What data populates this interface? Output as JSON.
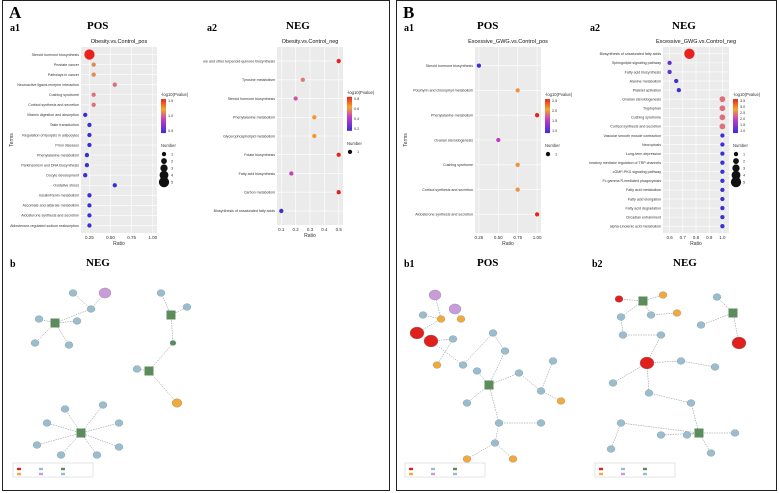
{
  "panels": {
    "A": {
      "letter": "A",
      "a1": "a1",
      "a2": "a2",
      "b": "b",
      "pos_title": "POS",
      "neg_title": "NEG",
      "net_title": "NEG"
    },
    "B": {
      "letter": "B",
      "a1": "a1",
      "a2": "a2",
      "b1": "b1",
      "b2": "b2",
      "pos_title": "POS",
      "neg_title": "NEG",
      "net1_title": "POS",
      "net2_title": "NEG"
    }
  },
  "colors": {
    "dot_low": "#3b2fd6",
    "dot_mid": "#f4a62a",
    "dot_high": "#e8231f",
    "node_blue": "#9bbccd",
    "node_purple": "#c99bd9",
    "node_orange": "#f2a93b",
    "node_red": "#e0201c",
    "node_green": "#5c8c5c"
  },
  "chart_data": [
    {
      "id": "A_a1",
      "type": "scatter",
      "title": "Obesity.vs.Control_pos",
      "xlabel": "Ratio",
      "ylabel": "Terms",
      "xticks": [
        "0.25",
        "0.50",
        "0.75",
        "1.00"
      ],
      "xlim": [
        0.15,
        1.05
      ],
      "legend_color_title": "-log10(Pvalue)",
      "legend_color_ticks": [
        "1.5",
        "1.0",
        "0.5"
      ],
      "legend_size_title": "Number",
      "legend_size_ticks": [
        "1",
        "2",
        "3",
        "4",
        "5"
      ],
      "terms": [
        "Steroid hormone biosynthesis",
        "Prostate cancer",
        "Pathways in cancer",
        "Neuroactive ligand-receptor interaction",
        "Cushing syndrome",
        "Cortisol synthesis and secretion",
        "Vitamin digestion and absorption",
        "Taste transduction",
        "Regulation of lipolysis in adipocytes",
        "Prion diseases",
        "Phenylalanine metabolism",
        "Parkinsonism and DNA biosynthesis",
        "Oocyte development",
        "Oxidative stress",
        "Insulin/Renin metabolism",
        "Ascorbate and aldarate metabolism",
        "Aldosterone synthesis and secretion",
        "Aldosterone-regulated sodium reabsorption"
      ],
      "x": [
        0.25,
        0.3,
        0.3,
        0.55,
        0.3,
        0.3,
        0.2,
        0.25,
        0.25,
        0.25,
        0.22,
        0.22,
        0.2,
        0.55,
        0.25,
        0.25,
        0.25,
        0.25
      ],
      "neglogp": [
        1.9,
        1.2,
        1.2,
        1.1,
        1.1,
        1.1,
        0.3,
        0.3,
        0.3,
        0.3,
        0.3,
        0.3,
        0.3,
        0.3,
        0.3,
        0.3,
        0.3,
        0.3
      ],
      "number": [
        5,
        1,
        1,
        1,
        1,
        1,
        1,
        1,
        1,
        1,
        1,
        1,
        1,
        1,
        1,
        1,
        1,
        1
      ]
    },
    {
      "id": "A_a2",
      "type": "scatter",
      "title": "Obesity.vs.Control_neg",
      "xlabel": "Ratio",
      "ylabel": "",
      "xticks": [
        "0.1",
        "0.2",
        "0.3",
        "0.4",
        "0.5"
      ],
      "xlim": [
        0.07,
        0.53
      ],
      "legend_color_title": "-log10(Pvalue)",
      "legend_color_ticks": [
        "0.8",
        "0.6",
        "0.4",
        "0.2"
      ],
      "legend_size_title": "Number",
      "legend_size_ticks": [
        "1"
      ],
      "terms": [
        "Ubiquinone and other terpenoid-quinone biosynthesis",
        "Tyrosine metabolism",
        "Steroid hormone biosynthesis",
        "Phenylalanine metabolism",
        "Glycerophospholipid metabolism",
        "Folate biosynthesis",
        "Fatty acid biosynthesis",
        "Carbon metabolism",
        "Biosynthesis of unsaturated fatty acids"
      ],
      "x": [
        0.5,
        0.25,
        0.2,
        0.33,
        0.33,
        0.5,
        0.17,
        0.5,
        0.1
      ],
      "neglogp": [
        0.95,
        0.55,
        0.45,
        0.7,
        0.7,
        0.95,
        0.4,
        0.95,
        0.1
      ],
      "number": [
        1,
        1,
        1,
        1,
        1,
        1,
        1,
        1,
        1
      ]
    },
    {
      "id": "B_a1",
      "type": "scatter",
      "title": "Excessive_GWG.vs.Control_pos",
      "xlabel": "Ratio",
      "ylabel": "Terms",
      "xticks": [
        "0.25",
        "0.50",
        "0.75",
        "1.00"
      ],
      "xlim": [
        0.2,
        1.05
      ],
      "legend_color_title": "-log10(Pvalue)",
      "legend_color_ticks": [
        "2.5",
        "2.0",
        "1.5",
        "1.0"
      ],
      "legend_size_title": "Number",
      "legend_size_ticks": [
        "1"
      ],
      "terms": [
        "Steroid hormone biosynthesis",
        "Porphyrin and chlorophyll metabolism",
        "Phenylalanine metabolism",
        "Ovarian steroidogenesis",
        "Cushing syndrome",
        "Cortisol synthesis and secretion",
        "Aldosterone synthesis and secretion"
      ],
      "x": [
        0.25,
        0.75,
        1.0,
        0.5,
        0.75,
        0.75,
        1.0
      ],
      "neglogp": [
        0.9,
        2.0,
        2.7,
        1.5,
        2.0,
        2.0,
        2.7
      ],
      "number": [
        1,
        1,
        1,
        1,
        1,
        1,
        1
      ]
    },
    {
      "id": "B_a2",
      "type": "scatter",
      "title": "Excessive_GWG.vs.Control_neg",
      "xlabel": "Ratio",
      "ylabel": "",
      "xticks": [
        "0.6",
        "0.7",
        "0.8",
        "0.9",
        "1.0"
      ],
      "xlim": [
        0.55,
        1.05
      ],
      "legend_color_title": "-log10(Pvalue)",
      "legend_color_ticks": [
        "3.5",
        "3.0",
        "2.5",
        "2.0",
        "1.5",
        "1.0"
      ],
      "legend_size_title": "Number",
      "legend_size_ticks": [
        "1",
        "2",
        "3",
        "4",
        "5"
      ],
      "terms": [
        "Biosynthesis of unsaturated fatty acids",
        "Sphingolipid signaling pathway",
        "Fatty acid biosynthesis",
        "Alanine metabolism",
        "Platelet activation",
        "Ovarian steroidogenesis",
        "Tryptophan",
        "Cushing syndrome",
        "Cortisol synthesis and secretion",
        "Vascular smooth muscle contraction",
        "Necroptosis",
        "Long-term depression",
        "Inflammatory mediator regulation of TRP channels",
        "cGMP-PKG signaling pathway",
        "Fc gamma R-mediated phagocytosis",
        "Fatty acid metabolism",
        "Fatty acid elongation",
        "Fatty acid degradation",
        "Circadian entrainment",
        "alpha-Linolenic acid metabolism"
      ],
      "x": [
        0.75,
        0.6,
        0.6,
        0.65,
        0.67,
        1.0,
        1.0,
        1.0,
        1.0,
        1.0,
        1.0,
        1.0,
        1.0,
        1.0,
        1.0,
        1.0,
        1.0,
        1.0,
        1.0,
        1.0
      ],
      "neglogp": [
        3.6,
        1.2,
        1.2,
        1.0,
        1.0,
        2.3,
        2.3,
        2.3,
        2.3,
        1.0,
        1.0,
        1.0,
        1.0,
        1.0,
        1.0,
        1.0,
        1.0,
        1.0,
        1.0,
        1.0
      ],
      "number": [
        5,
        1,
        1,
        1,
        1,
        2,
        2,
        2,
        2,
        1,
        1,
        1,
        1,
        1,
        1,
        1,
        1,
        1,
        1,
        1
      ]
    }
  ]
}
